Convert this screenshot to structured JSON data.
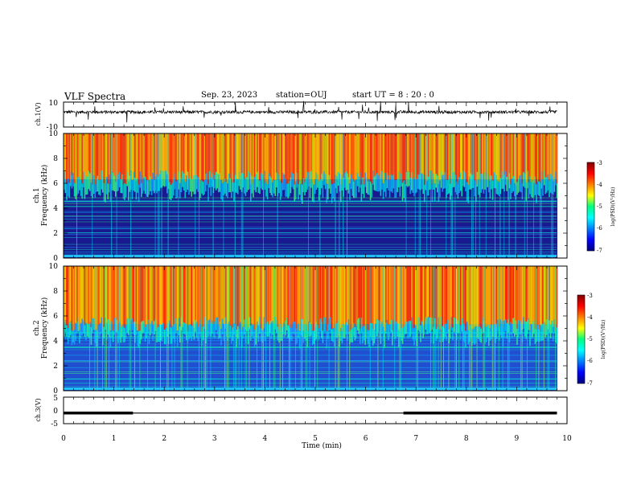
{
  "header": {
    "title": "VLF Spectra",
    "date": "Sep. 23, 2023",
    "station": "station=OUJ",
    "start": "start  UT =  8 : 20 : 0"
  },
  "chart_data": [
    {
      "type": "line",
      "name": "ch1-waveform",
      "ylabel": "ch.1(V)",
      "ylim": [
        -10,
        10
      ],
      "yticks": [
        "10",
        "-10"
      ],
      "xlim": [
        0,
        10
      ]
    },
    {
      "type": "heatmap",
      "name": "ch1-spectrogram",
      "ylabel_line1": "ch.1",
      "ylabel_line2": "Frequency (kHz)",
      "ylim": [
        0,
        10
      ],
      "yticks": [
        "0",
        "2",
        "4",
        "6",
        "8",
        "10"
      ],
      "xlim": [
        0,
        9.8
      ],
      "colorbar": {
        "label": "log(PSD)(V²/Hz)",
        "range": [
          -7,
          -3
        ],
        "ticks": [
          "-3",
          "-4",
          "-5",
          "-6",
          "-7"
        ]
      }
    },
    {
      "type": "heatmap",
      "name": "ch2-spectrogram",
      "ylabel_line1": "ch.2",
      "ylabel_line2": "Frequency (kHz)",
      "ylim": [
        0,
        10
      ],
      "yticks": [
        "0",
        "2",
        "4",
        "6",
        "8",
        "10"
      ],
      "xlim": [
        0,
        9.8
      ],
      "colorbar": {
        "label": "log(PSD)(V²/Hz)",
        "range": [
          -7,
          -3
        ],
        "ticks": [
          "-3",
          "-4",
          "-5",
          "-6",
          "-7"
        ]
      }
    },
    {
      "type": "line",
      "name": "ch3-level",
      "ylabel": "ch.3(V)",
      "ylim": [
        -5,
        5
      ],
      "yticks": [
        "5",
        "0",
        "-5"
      ],
      "segments": [
        {
          "x": [
            0,
            1.38
          ],
          "y": -1.0,
          "style": "thick"
        },
        {
          "x": [
            1.38,
            6.75
          ],
          "y": -1.0,
          "style": "thin"
        },
        {
          "x": [
            6.75,
            9.8
          ],
          "y": -1.0,
          "style": "thick"
        }
      ]
    }
  ],
  "xaxis": {
    "label": "Time (min)",
    "range": [
      0,
      10
    ],
    "ticks": [
      "0",
      "1",
      "2",
      "3",
      "4",
      "5",
      "6",
      "7",
      "8",
      "9",
      "10"
    ]
  }
}
